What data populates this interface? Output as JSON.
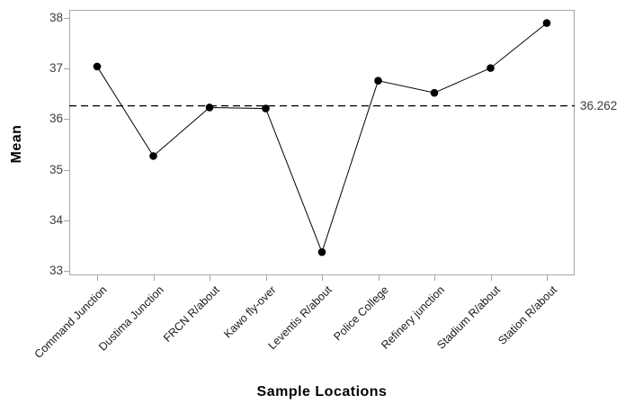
{
  "chart_data": {
    "type": "line",
    "title": "",
    "xlabel": "Sample Locations",
    "ylabel": "Mean",
    "categories": [
      "Command Junction",
      "Dustima Junction",
      "FRCN R/about",
      "Kawo fly-over",
      "Leventis R/about",
      "Police College",
      "Refinery junction",
      "Stadium R/about",
      "Station R/about"
    ],
    "series": [
      {
        "name": "Mean",
        "values": [
          37.04,
          35.27,
          36.23,
          36.21,
          33.37,
          36.76,
          36.52,
          37.01,
          37.9
        ]
      }
    ],
    "yticks": [
      33,
      34,
      35,
      36,
      37,
      38
    ],
    "ylim": [
      32.91,
      38.16
    ],
    "reference_line": {
      "value": 36.262,
      "label": "36.262",
      "style": "dashed"
    },
    "grid": false,
    "legend": "none",
    "marker": "filled-circle",
    "colors": {
      "line": "#000000",
      "marker": "#000000",
      "axis_border": "#a6a6a6",
      "tick_text": "#3d3d3d",
      "title_text": "#000000",
      "background": "#ffffff"
    }
  }
}
